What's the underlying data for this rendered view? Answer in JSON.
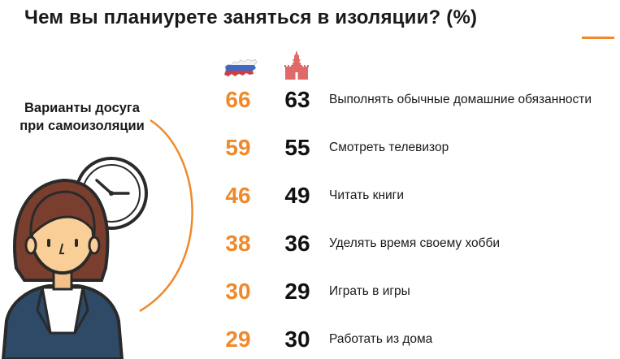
{
  "title": "Чем вы планиурете заняться в изоляции? (%)",
  "left_label": {
    "line1": "Варианты досуга",
    "line2": "при самоизоляции"
  },
  "column_icons": {
    "russia": "russia-map-flag-icon",
    "moscow": "kremlin-tower-icon"
  },
  "colors": {
    "accent": "#f0892a",
    "dark": "#111111"
  },
  "rows": [
    {
      "russia": "66",
      "moscow": "63",
      "label": "Выполнять обычные домашние обязанности"
    },
    {
      "russia": "59",
      "moscow": "55",
      "label": "Смотреть телевизор"
    },
    {
      "russia": "46",
      "moscow": "49",
      "label": "Читать книги"
    },
    {
      "russia": "38",
      "moscow": "36",
      "label": "Уделять время своему хобби"
    },
    {
      "russia": "30",
      "moscow": "29",
      "label": "Играть в игры"
    },
    {
      "russia": "29",
      "moscow": "30",
      "label": "Работать из дома"
    }
  ]
}
